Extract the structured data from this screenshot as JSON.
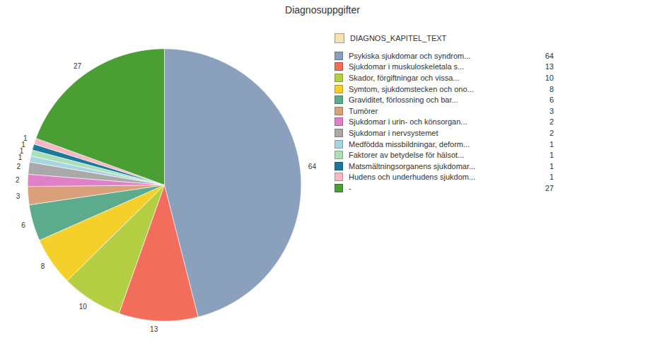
{
  "chart_data": {
    "type": "pie",
    "title": "Diagnosuppgifter",
    "legend_title": "DIAGNOS_KAPITEL_TEXT",
    "categories": [
      "Psykiska sjukdomar och syndrom...",
      "Sjukdomar i muskuloskeletala s...",
      "Skador, förgiftningar och vissa...",
      "Symtom, sjukdomstecken och ono...",
      "Graviditet, förlossning och bar...",
      "Tumörer",
      "Sjukdomar i urin- och könsorgan...",
      "Sjukdomar i nervsystemet",
      "Medfödda missbildningar, deform...",
      "Faktorer av betydelse för hälsot...",
      "Matsmältningsorganens sjukdomar...",
      "Hudens och underhudens sjukdom...",
      "-"
    ],
    "values": [
      64,
      13,
      10,
      8,
      6,
      3,
      2,
      2,
      1,
      1,
      1,
      1,
      27
    ],
    "colors": [
      "#8aa0bd",
      "#f26d5b",
      "#b5cf44",
      "#f5cf2a",
      "#5cab8d",
      "#d9a07b",
      "#e081c8",
      "#a9a9a9",
      "#a8d6e0",
      "#a9e0b8",
      "#1b7a99",
      "#f7b8c4",
      "#4a9e34"
    ],
    "legend": "right",
    "data_labels": true
  }
}
